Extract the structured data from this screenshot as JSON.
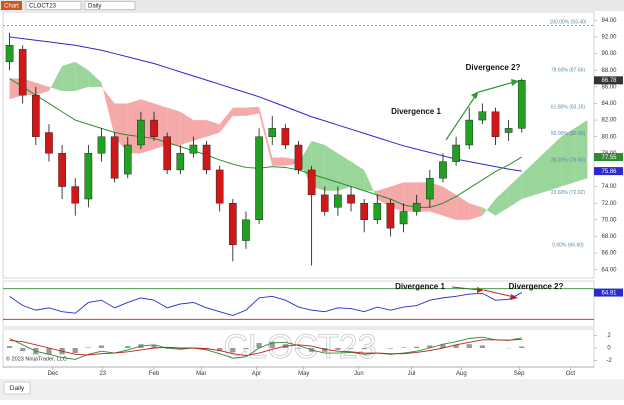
{
  "toolbar": {
    "button": "Chart",
    "instrument": "CLOCT23",
    "interval": "Daily"
  },
  "tab": "Daily",
  "chart_data": [
    {
      "type": "candlestick",
      "xlim": [
        -0.5,
        44.5
      ],
      "xticks": [
        {
          "value": 3.3,
          "label": "Dec"
        },
        {
          "value": 7.1,
          "label": "23"
        },
        {
          "value": 11.0,
          "label": "Feb"
        },
        {
          "value": 14.6,
          "label": "Mar"
        },
        {
          "value": 18.8,
          "label": "Apr"
        },
        {
          "value": 22.4,
          "label": "May"
        },
        {
          "value": 26.6,
          "label": "Jun"
        },
        {
          "value": 30.6,
          "label": "Jul"
        },
        {
          "value": 34.4,
          "label": "Aug"
        },
        {
          "value": 38.8,
          "label": "Sep"
        },
        {
          "value": 42.7,
          "label": "Oct"
        }
      ],
      "ylim": [
        63,
        95
      ],
      "yticks": [
        {
          "value": 64,
          "label": "64.00"
        },
        {
          "value": 66,
          "label": "66.00"
        },
        {
          "value": 68,
          "label": "68.00"
        },
        {
          "value": 70,
          "label": "70.00"
        },
        {
          "value": 72,
          "label": "72.00"
        },
        {
          "value": 74,
          "label": "74.00"
        },
        {
          "value": 76,
          "label": "76.00"
        },
        {
          "value": 78,
          "label": "78.00"
        },
        {
          "value": 80,
          "label": "80.00"
        },
        {
          "value": 82,
          "label": "82.00"
        },
        {
          "value": 84,
          "label": "84.00"
        },
        {
          "value": 86,
          "label": "86.00"
        },
        {
          "value": 88,
          "label": "88.00"
        },
        {
          "value": 90,
          "label": "90.00"
        },
        {
          "value": 92,
          "label": "92.00"
        },
        {
          "value": 94,
          "label": "94.00"
        }
      ],
      "up_color": "#22a022",
      "down_color": "#d01818",
      "open": [
        89,
        90.5,
        85,
        80.5,
        78,
        74,
        72.5,
        78,
        80,
        75.5,
        79,
        82,
        80,
        76,
        78,
        79,
        76,
        72,
        67.5,
        70,
        80,
        81,
        79,
        76,
        73,
        71.5,
        73,
        72,
        70,
        72,
        69.5,
        71,
        72.5,
        75,
        77,
        79,
        82,
        83,
        80.5,
        81
      ],
      "high": [
        92.5,
        91,
        86,
        81.5,
        79,
        75,
        79,
        81,
        80.5,
        80,
        83,
        83,
        80.5,
        79,
        80,
        79.5,
        76.5,
        72.5,
        71,
        81,
        82.5,
        81.5,
        79.5,
        76.5,
        74,
        74,
        74,
        72.5,
        73,
        72.5,
        72,
        73,
        76,
        78,
        80,
        83.5,
        84,
        83.5,
        82,
        87
      ],
      "low": [
        88,
        84,
        79,
        77,
        72.5,
        70.5,
        71.5,
        77,
        74.5,
        75,
        78.5,
        79.5,
        75.5,
        75.5,
        77.5,
        75.5,
        71,
        65,
        66.5,
        69.5,
        79,
        78.5,
        75.5,
        64.5,
        70.5,
        70.5,
        71,
        68.5,
        69.5,
        68,
        68.5,
        70.5,
        71.5,
        74.5,
        76.5,
        78.5,
        81.5,
        79,
        79.5,
        80.5
      ],
      "close": [
        91,
        85,
        80,
        78,
        74,
        72,
        78,
        80,
        75,
        79,
        82,
        80,
        76,
        78,
        79,
        76,
        72,
        67,
        70,
        80,
        81,
        79,
        76,
        73,
        71,
        73,
        72,
        70,
        72,
        69,
        71,
        72,
        75,
        77,
        79,
        82,
        83,
        80,
        81,
        86.78
      ],
      "lines": [
        {
          "color": "#2a2ad0",
          "values": [
            92,
            91.8,
            91.6,
            91.4,
            91.2,
            91,
            90.7,
            90.4,
            90,
            89.6,
            89.2,
            88.8,
            88.3,
            87.8,
            87.3,
            86.8,
            86.3,
            85.8,
            85.3,
            84.8,
            84.2,
            83.6,
            83,
            82.4,
            81.9,
            81.4,
            80.9,
            80.4,
            79.9,
            79.4,
            78.9,
            78.5,
            78.1,
            77.7,
            77.3,
            77,
            76.7,
            76.4,
            76.1,
            75.86
          ]
        },
        {
          "color": "#2e8b2e",
          "values": [
            87,
            86,
            85,
            84,
            83,
            82,
            81.5,
            81,
            80.5,
            80.2,
            80,
            79.8,
            79.3,
            78.8,
            78.3,
            77.8,
            77.2,
            76.7,
            76.3,
            76.2,
            76.4,
            76.3,
            76,
            75.5,
            75,
            74.5,
            74,
            73.5,
            73,
            72.5,
            71.8,
            71.5,
            71.5,
            72,
            72.8,
            73.8,
            74.8,
            75.8,
            76.6,
            77.55
          ]
        }
      ],
      "cloud": {
        "up_color": "#8fd08f",
        "down_color": "#f4a0a0",
        "span_a": [
          84.5,
          85,
          85,
          85.5,
          88.5,
          89,
          88,
          86.5,
          80,
          78,
          78,
          78.5,
          79,
          79,
          79.5,
          80,
          80.5,
          82.5,
          82.5,
          82.8,
          76.5,
          76.5,
          76.8,
          79.5,
          79,
          78,
          77,
          76,
          72.5,
          71.5,
          71,
          71,
          71,
          70.5,
          70,
          70,
          70.5,
          72.5,
          74,
          75.5,
          77,
          78.5,
          80,
          81,
          82
        ],
        "span_b": [
          87,
          87,
          86.5,
          86,
          85.5,
          85.5,
          86,
          86,
          84,
          84,
          84.5,
          84,
          83.5,
          83,
          82,
          82,
          81.5,
          83.5,
          83.5,
          83.6,
          77.5,
          77.5,
          77.2,
          74,
          73.5,
          73.5,
          74,
          73.5,
          73.5,
          74,
          74.5,
          74.5,
          74.5,
          74,
          73,
          72,
          71.5,
          70.5,
          71.5,
          72.5,
          73,
          73.5,
          74,
          74.5,
          75
        ]
      },
      "fib": {
        "color": "#5a8ab0",
        "line_color": "#e03030",
        "levels": [
          {
            "value": 93.4,
            "label": "100.00% (93.40)",
            "line": true
          },
          {
            "value": 87.66,
            "label": "78.60% (87.66)"
          },
          {
            "value": 83.16,
            "label": "61.80% (83.16)"
          },
          {
            "value": 80,
            "label": "50.00% (80.00)"
          },
          {
            "value": 76.84,
            "label": "38.20% (76.84)"
          },
          {
            "value": 72.92,
            "label": "23.60% (72.92)"
          },
          {
            "value": 66.6,
            "label": "0.00% (66.60)"
          }
        ]
      },
      "price_tags": [
        {
          "value": 86.78,
          "label": "86.78",
          "color": "#333333"
        },
        {
          "value": 77.55,
          "label": "77.55",
          "color": "#2e8b2e"
        },
        {
          "value": 75.86,
          "label": "75.86",
          "color": "#2a2ad0"
        }
      ],
      "annotations": [
        "Divergence 1",
        "Divergence 2?"
      ]
    },
    {
      "type": "line",
      "ylim": [
        20,
        80
      ],
      "color": "#2a2ad0",
      "levels": [
        {
          "value": 70,
          "color": "#2e8b2e"
        },
        {
          "value": 30,
          "color": "#d01818"
        }
      ],
      "values": [
        60,
        48,
        42,
        45,
        40,
        38,
        52,
        55,
        45,
        52,
        58,
        55,
        45,
        50,
        52,
        45,
        40,
        35,
        42,
        58,
        60,
        55,
        46,
        42,
        40,
        45,
        44,
        40,
        46,
        42,
        46,
        48,
        55,
        58,
        60,
        63,
        64,
        55,
        56,
        64.91
      ],
      "price_tag": {
        "value": 64.91,
        "label": "64.91",
        "color": "#2a2ad0"
      },
      "annotations": [
        "Divergence 1",
        "Divergence 2?"
      ]
    },
    {
      "type": "macd",
      "ylim": [
        -3,
        3
      ],
      "yticks": [
        -2,
        0,
        2
      ],
      "watermark": "CLOCT23",
      "copyright": "© 2023 NinjaTrader, LLC",
      "macd": {
        "color": "#2e8b2e",
        "values": [
          1.5,
          0.5,
          -0.5,
          -1,
          -1.5,
          -1.8,
          -1,
          -0.5,
          -0.8,
          -0.3,
          0.3,
          0.5,
          0,
          -0.2,
          0,
          -0.3,
          -0.9,
          -1.6,
          -1.4,
          0,
          0.8,
          0.9,
          0.4,
          -0.3,
          -0.8,
          -0.8,
          -0.7,
          -1,
          -0.8,
          -1,
          -0.8,
          -0.5,
          0,
          0.6,
          1,
          1.5,
          1.7,
          1.3,
          1.2,
          1.6
        ]
      },
      "signal": {
        "color": "#c02020",
        "values": [
          1.2,
          1,
          0.5,
          0,
          -0.5,
          -1,
          -1.1,
          -0.9,
          -0.8,
          -0.6,
          -0.3,
          0,
          0.1,
          0,
          0,
          -0.1,
          -0.4,
          -0.9,
          -1.2,
          -0.8,
          -0.2,
          0.3,
          0.5,
          0.3,
          -0.2,
          -0.5,
          -0.6,
          -0.8,
          -0.8,
          -0.9,
          -0.9,
          -0.7,
          -0.4,
          0,
          0.5,
          0.9,
          1.3,
          1.3,
          1.25,
          1.35
        ]
      },
      "histogram": {
        "color": "#999999",
        "values": [
          0.3,
          -0.5,
          -1,
          -1,
          -1,
          -0.8,
          0.1,
          0.4,
          0,
          0.3,
          0.6,
          0.5,
          -0.1,
          -0.2,
          0,
          -0.2,
          -0.5,
          -0.7,
          -0.2,
          0.8,
          1,
          0.6,
          -0.1,
          -0.6,
          -0.6,
          -0.3,
          -0.1,
          -0.2,
          0,
          -0.1,
          0.1,
          0.2,
          0.4,
          0.6,
          0.5,
          0.6,
          0.4,
          0,
          -0.05,
          0.25
        ]
      }
    }
  ]
}
